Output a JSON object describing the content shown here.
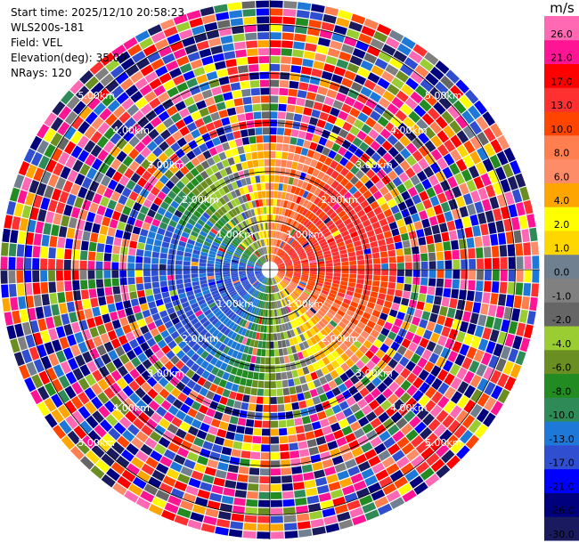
{
  "info": {
    "start_time": "Start time: 2025/12/10 20:58:23",
    "instrument": "WLS200s-181",
    "field": "Field: VEL",
    "elevation": "Elevation(deg): 35.00",
    "nrays": "NRays: 120"
  },
  "chart_data": {
    "type": "heatmap",
    "subtype": "polar PPI radial velocity scan",
    "field": "VEL",
    "elevation_deg": 35.0,
    "n_rays": 120,
    "range_rings_km": [
      1,
      2,
      3,
      4,
      5
    ],
    "ring_labels": [
      "1.00km",
      "2.00km",
      "3.00km",
      "4.00km",
      "5.00km"
    ],
    "max_range_km": 5.5,
    "colorbar": {
      "unit": "m/s",
      "bounds": [
        -30,
        -26,
        -21,
        -17,
        -13,
        -10,
        -8,
        -6,
        -4,
        -2,
        -1,
        0,
        1,
        2,
        4,
        6,
        8,
        10,
        13,
        17,
        21,
        26,
        30
      ],
      "tick_labels": [
        "-30.0",
        "-26.0",
        "-21.0",
        "-17.0",
        "-13.0",
        "-10.0",
        "-8.0",
        "-6.0",
        "-4.0",
        "-2.0",
        "-1.0",
        "0.0",
        "1.0",
        "2.0",
        "4.0",
        "6.0",
        "8.0",
        "10.0",
        "13.0",
        "17.0",
        "21.0",
        "26.0"
      ],
      "colors": [
        "#1a1a5e",
        "#00007f",
        "#0000ff",
        "#2f4fd0",
        "#1e78d8",
        "#2e8b57",
        "#228b22",
        "#6b8e23",
        "#9acd32",
        "#666666",
        "#808080",
        "#708090",
        "#ffd700",
        "#ffff00",
        "#ffa500",
        "#ff8c69",
        "#ff7f50",
        "#ff4500",
        "#ff3030",
        "#ff0000",
        "#ff1493",
        "#ff69b4"
      ]
    },
    "pattern": "near-range (<2.5 km) coherent dipole: approaching (blue, about -10 to -17 m/s) toward the northwest, green toward the south-southwest, receding (orange/red, about +8 to +21 m/s) toward the east and southeast, yellow toward the north-northeast and south-southwest; beyond about 2.5 km the returns are random noise across all velocity classes"
  }
}
